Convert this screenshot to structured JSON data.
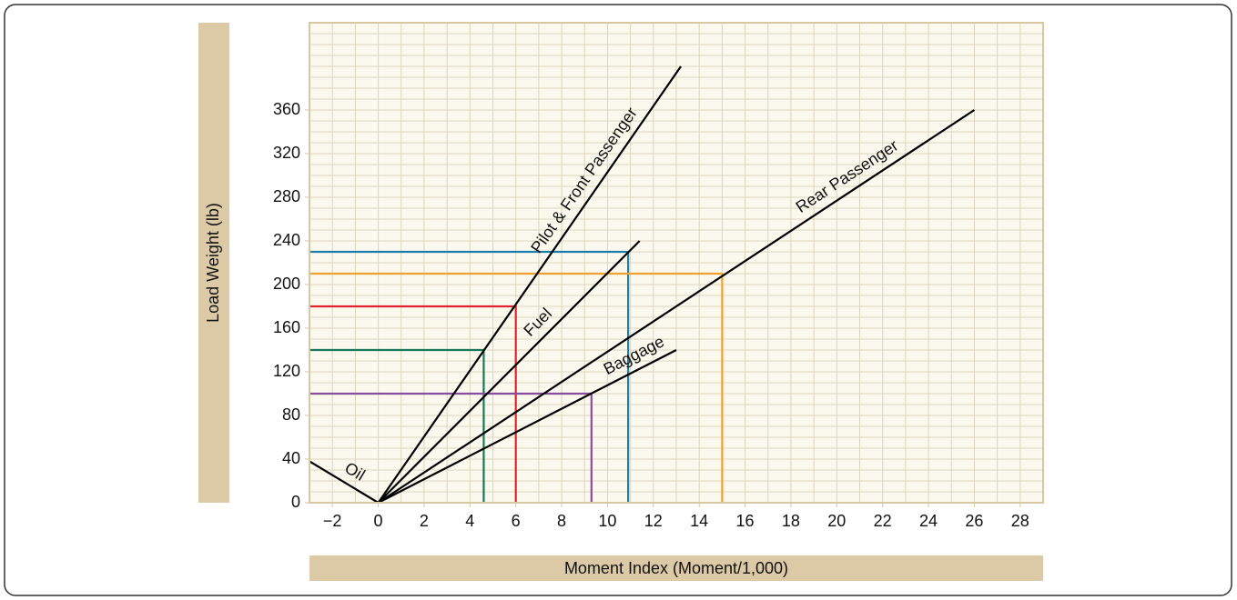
{
  "chart_data": {
    "type": "line",
    "xlabel": "Moment Index (Moment/1,000)",
    "ylabel": "Load Weight (lb)",
    "xlim": [
      -3,
      29
    ],
    "ylim": [
      0,
      440
    ],
    "xticks": [
      {
        "value": -2,
        "label": "−2"
      },
      0,
      2,
      4,
      6,
      8,
      10,
      12,
      14,
      16,
      18,
      20,
      22,
      24,
      26,
      28
    ],
    "yticks": [
      0,
      40,
      80,
      120,
      160,
      200,
      240,
      280,
      320,
      360
    ],
    "grid": true,
    "minor_grid_step": {
      "x": 1,
      "y": 10
    },
    "series": [
      {
        "name": "Pilot & Front Passenger",
        "color": "#000000",
        "x": [
          0,
          13.2
        ],
        "values": [
          0,
          400
        ]
      },
      {
        "name": "Fuel",
        "color": "#000000",
        "x": [
          0,
          11.4
        ],
        "values": [
          0,
          240
        ]
      },
      {
        "name": "Rear Passenger",
        "color": "#000000",
        "x": [
          0,
          26
        ],
        "values": [
          0,
          360
        ]
      },
      {
        "name": "Baggage",
        "color": "#000000",
        "x": [
          0,
          13
        ],
        "values": [
          0,
          140
        ]
      },
      {
        "name": "Oil",
        "color": "#000000",
        "x": [
          0,
          -3
        ],
        "values": [
          0,
          38
        ]
      }
    ],
    "reference_lines": [
      {
        "color": "#1a7fb0",
        "x": [
          -3,
          10.9,
          10.9
        ],
        "values": [
          230,
          230,
          0
        ]
      },
      {
        "color": "#f0a030",
        "x": [
          -3,
          15,
          15
        ],
        "values": [
          210,
          210,
          0
        ]
      },
      {
        "color": "#e0242c",
        "x": [
          -3,
          6,
          6
        ],
        "values": [
          180,
          180,
          0
        ]
      },
      {
        "color": "#17785a",
        "x": [
          -3,
          4.6,
          4.6
        ],
        "values": [
          140,
          140,
          0
        ]
      },
      {
        "color": "#8a4c9e",
        "x": [
          -3,
          9.3,
          9.3
        ],
        "values": [
          100,
          100,
          0
        ]
      }
    ]
  }
}
